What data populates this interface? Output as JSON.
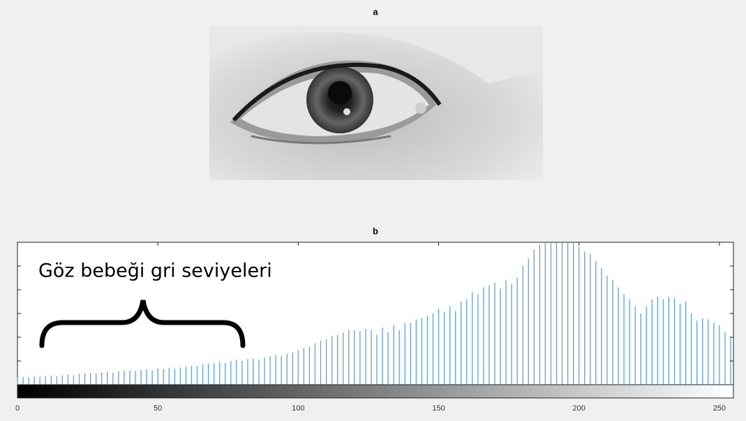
{
  "chart_data": [
    {
      "type": "image",
      "title": "a"
    },
    {
      "type": "stem",
      "title": "b",
      "annotation": "Göz bebeği gri seviyeleri",
      "color": "#5fa2d4",
      "x": [
        0,
        2,
        4,
        6,
        8,
        10,
        12,
        14,
        16,
        18,
        20,
        22,
        24,
        26,
        28,
        30,
        32,
        34,
        36,
        38,
        40,
        42,
        44,
        46,
        48,
        50,
        52,
        54,
        56,
        58,
        60,
        62,
        64,
        66,
        68,
        70,
        72,
        74,
        76,
        78,
        80,
        82,
        84,
        86,
        88,
        90,
        92,
        94,
        96,
        98,
        100,
        102,
        104,
        106,
        108,
        110,
        112,
        114,
        116,
        118,
        120,
        122,
        124,
        126,
        128,
        130,
        132,
        134,
        136,
        138,
        140,
        142,
        144,
        146,
        148,
        150,
        152,
        154,
        156,
        158,
        160,
        162,
        164,
        166,
        168,
        170,
        172,
        174,
        176,
        178,
        180,
        182,
        184,
        186,
        188,
        190,
        192,
        194,
        196,
        198,
        200,
        202,
        204,
        206,
        208,
        210,
        212,
        214,
        216,
        218,
        220,
        222,
        224,
        226,
        228,
        230,
        232,
        234,
        236,
        238,
        240,
        242,
        244,
        246,
        248,
        250,
        252,
        254
      ],
      "values": [
        0.3,
        0.32,
        0.31,
        0.35,
        0.33,
        0.36,
        0.38,
        0.35,
        0.4,
        0.42,
        0.4,
        0.45,
        0.47,
        0.5,
        0.48,
        0.52,
        0.55,
        0.5,
        0.56,
        0.58,
        0.6,
        0.57,
        0.62,
        0.65,
        0.6,
        0.68,
        0.66,
        0.7,
        0.67,
        0.72,
        0.75,
        0.8,
        0.78,
        0.85,
        0.88,
        0.9,
        0.95,
        0.92,
        1.0,
        1.05,
        1.0,
        1.08,
        1.1,
        1.05,
        1.15,
        1.2,
        1.25,
        1.2,
        1.3,
        1.35,
        1.45,
        1.55,
        1.6,
        1.75,
        1.85,
        1.9,
        2.05,
        2.1,
        2.2,
        2.3,
        2.3,
        2.25,
        2.35,
        2.3,
        2.1,
        2.4,
        2.2,
        2.5,
        2.3,
        2.6,
        2.6,
        2.75,
        2.8,
        2.9,
        3.0,
        3.2,
        3.05,
        3.3,
        3.1,
        3.5,
        3.6,
        3.9,
        3.8,
        4.1,
        4.2,
        4.3,
        4.05,
        4.4,
        4.25,
        4.5,
        5.0,
        5.3,
        5.7,
        5.9,
        6,
        6,
        6,
        6,
        6,
        6,
        5.8,
        5.6,
        5.5,
        5.2,
        4.9,
        4.6,
        4.4,
        4.1,
        3.8,
        3.6,
        3.3,
        3.0,
        3.3,
        3.6,
        3.7,
        3.6,
        3.7,
        3.65,
        3.4,
        3.5,
        3.0,
        2.7,
        2.8,
        2.75,
        2.6,
        2.5,
        2.2,
        2.0
      ],
      "xlim": [
        0,
        255
      ],
      "xticks": [
        0,
        50,
        100,
        150,
        200,
        250
      ],
      "ylim": [
        0,
        6
      ],
      "yticks": [
        0,
        1,
        2,
        3,
        4,
        5,
        6
      ]
    }
  ]
}
